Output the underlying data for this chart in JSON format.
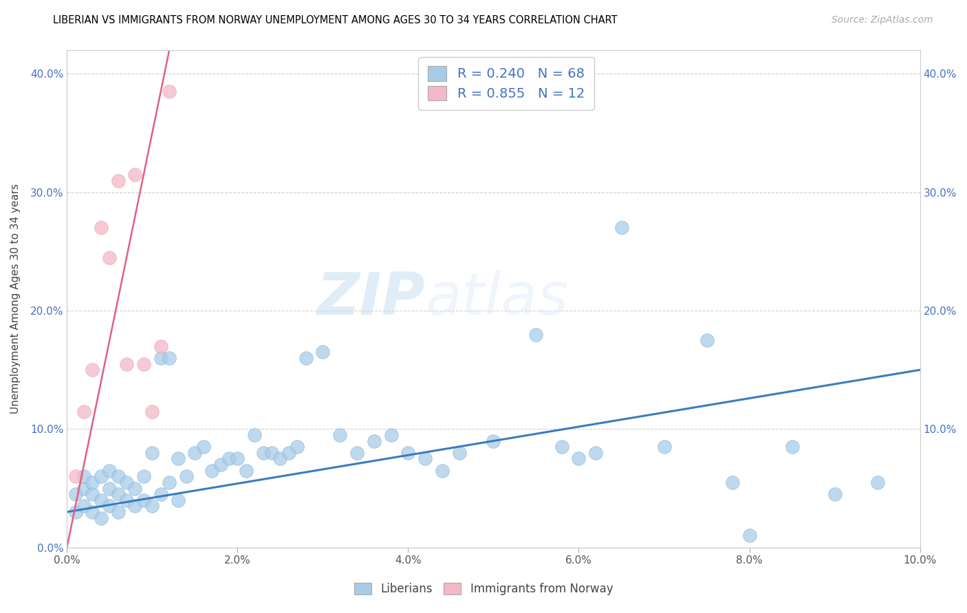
{
  "title": "LIBERIAN VS IMMIGRANTS FROM NORWAY UNEMPLOYMENT AMONG AGES 30 TO 34 YEARS CORRELATION CHART",
  "source": "Source: ZipAtlas.com",
  "ylabel": "Unemployment Among Ages 30 to 34 years",
  "xlim": [
    0.0,
    0.1
  ],
  "ylim": [
    0.0,
    0.42
  ],
  "blue_R": 0.24,
  "blue_N": 68,
  "pink_R": 0.855,
  "pink_N": 12,
  "blue_color": "#a8cce8",
  "pink_color": "#f4b8c8",
  "blue_line_color": "#3a7bbf",
  "pink_line_color": "#e06080",
  "watermark_zip": "ZIP",
  "watermark_atlas": "atlas",
  "blue_scatter_x": [
    0.001,
    0.001,
    0.002,
    0.002,
    0.002,
    0.003,
    0.003,
    0.003,
    0.004,
    0.004,
    0.004,
    0.005,
    0.005,
    0.005,
    0.006,
    0.006,
    0.006,
    0.007,
    0.007,
    0.008,
    0.008,
    0.009,
    0.009,
    0.01,
    0.01,
    0.011,
    0.011,
    0.012,
    0.012,
    0.013,
    0.013,
    0.014,
    0.015,
    0.016,
    0.017,
    0.018,
    0.019,
    0.02,
    0.021,
    0.022,
    0.023,
    0.024,
    0.025,
    0.026,
    0.027,
    0.028,
    0.03,
    0.032,
    0.034,
    0.036,
    0.038,
    0.04,
    0.042,
    0.044,
    0.046,
    0.05,
    0.055,
    0.058,
    0.06,
    0.062,
    0.065,
    0.07,
    0.075,
    0.078,
    0.08,
    0.085,
    0.09,
    0.095
  ],
  "blue_scatter_y": [
    0.03,
    0.045,
    0.035,
    0.05,
    0.06,
    0.03,
    0.045,
    0.055,
    0.025,
    0.04,
    0.06,
    0.035,
    0.05,
    0.065,
    0.03,
    0.045,
    0.06,
    0.04,
    0.055,
    0.035,
    0.05,
    0.04,
    0.06,
    0.035,
    0.08,
    0.045,
    0.16,
    0.055,
    0.16,
    0.04,
    0.075,
    0.06,
    0.08,
    0.085,
    0.065,
    0.07,
    0.075,
    0.075,
    0.065,
    0.095,
    0.08,
    0.08,
    0.075,
    0.08,
    0.085,
    0.16,
    0.165,
    0.095,
    0.08,
    0.09,
    0.095,
    0.08,
    0.075,
    0.065,
    0.08,
    0.09,
    0.18,
    0.085,
    0.075,
    0.08,
    0.27,
    0.085,
    0.175,
    0.055,
    0.01,
    0.085,
    0.045,
    0.055
  ],
  "pink_scatter_x": [
    0.001,
    0.002,
    0.003,
    0.004,
    0.005,
    0.006,
    0.007,
    0.008,
    0.009,
    0.01,
    0.011,
    0.012
  ],
  "pink_scatter_y": [
    0.06,
    0.115,
    0.15,
    0.27,
    0.245,
    0.31,
    0.155,
    0.315,
    0.155,
    0.115,
    0.17,
    0.385
  ],
  "blue_line_x0": 0.0,
  "blue_line_y0": 0.03,
  "blue_line_x1": 0.1,
  "blue_line_y1": 0.15,
  "pink_line_x0": 0.0,
  "pink_line_y0": 0.0,
  "pink_line_x1": 0.012,
  "pink_line_y1": 0.42,
  "xtick_labels": [
    "0.0%",
    "2.0%",
    "4.0%",
    "6.0%",
    "8.0%",
    "10.0%"
  ],
  "xtick_values": [
    0.0,
    0.02,
    0.04,
    0.06,
    0.08,
    0.1
  ],
  "ytick_labels": [
    "0.0%",
    "10.0%",
    "20.0%",
    "30.0%",
    "40.0%"
  ],
  "ytick_values": [
    0.0,
    0.1,
    0.2,
    0.3,
    0.4
  ],
  "ytick_labels_right": [
    "10.0%",
    "20.0%",
    "30.0%",
    "40.0%"
  ],
  "ytick_values_right": [
    0.1,
    0.2,
    0.3,
    0.4
  ]
}
